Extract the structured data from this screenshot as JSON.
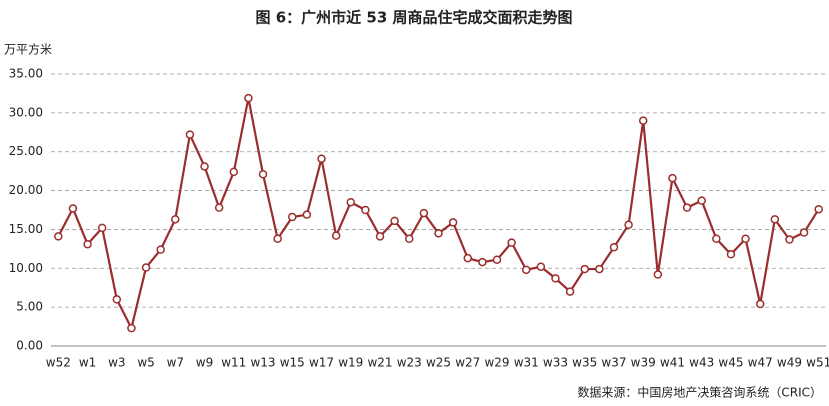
{
  "chart_data": {
    "type": "line",
    "title": "图 6：广州市近 53 周商品住宅成交面积走势图",
    "y_axis_label": "万平方米",
    "source": "数据来源：中国房地产决策咨询系统（CRIC）",
    "categories": [
      "w52",
      null,
      "w1",
      null,
      "w3",
      null,
      "w5",
      null,
      "w7",
      null,
      "w9",
      null,
      "w11",
      null,
      "w13",
      null,
      "w15",
      null,
      "w17",
      null,
      "w19",
      null,
      "w21",
      null,
      "w23",
      null,
      "w25",
      null,
      "w27",
      null,
      "w29",
      null,
      "w31",
      null,
      "w33",
      null,
      "w35",
      null,
      "w37",
      null,
      "w39",
      null,
      "w41",
      null,
      "w43",
      null,
      "w45",
      null,
      "w47",
      null,
      "w49",
      null,
      "w51"
    ],
    "series": [
      {
        "name": "商品住宅成交面积",
        "color": "#9b2d2d",
        "values": [
          14.1,
          17.7,
          13.1,
          15.2,
          6.0,
          2.3,
          10.1,
          12.4,
          16.3,
          27.2,
          23.1,
          17.8,
          22.4,
          31.9,
          22.1,
          13.8,
          16.6,
          16.9,
          24.1,
          14.2,
          18.5,
          17.5,
          14.1,
          16.1,
          13.8,
          17.1,
          14.5,
          15.9,
          11.3,
          10.8,
          11.1,
          13.3,
          9.8,
          10.2,
          8.7,
          7.0,
          9.9,
          9.9,
          12.7,
          15.6,
          29.0,
          9.2,
          21.6,
          17.8,
          18.7,
          13.8,
          11.8,
          13.8,
          5.4,
          16.3,
          13.7,
          14.6,
          17.6
        ]
      }
    ],
    "ylim": [
      0,
      35
    ],
    "yticks": [
      {
        "value": 0,
        "label": "0.00"
      },
      {
        "value": 5,
        "label": "5.00"
      },
      {
        "value": 10,
        "label": "10.00"
      },
      {
        "value": 15,
        "label": "15.00"
      },
      {
        "value": 20,
        "label": "20.00"
      },
      {
        "value": 25,
        "label": "25.00"
      },
      {
        "value": 30,
        "label": "30.00"
      },
      {
        "value": 35,
        "label": "35.00"
      }
    ],
    "grid": true
  }
}
